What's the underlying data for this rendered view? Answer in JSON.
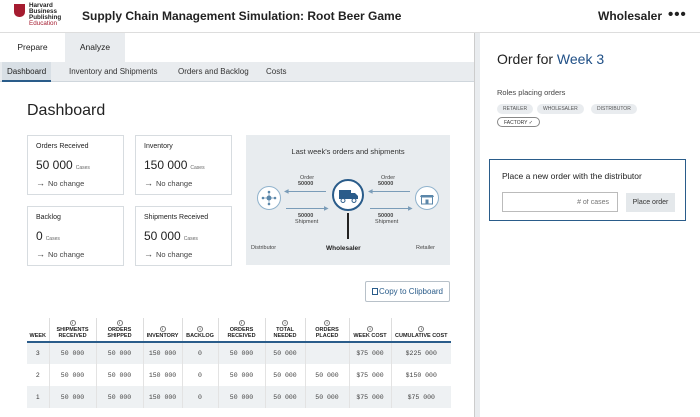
{
  "header": {
    "logo_lines": [
      "Harvard",
      "Business",
      "Publishing",
      "Education"
    ],
    "app_title": "Supply Chain Management Simulation: Root Beer Game",
    "role": "Wholesaler",
    "more_label": "•••"
  },
  "tabs": [
    {
      "label": "Prepare",
      "active": false
    },
    {
      "label": "Analyze",
      "active": true
    }
  ],
  "subtabs": [
    {
      "label": "Dashboard",
      "active": true
    },
    {
      "label": "Inventory and Shipments",
      "active": false
    },
    {
      "label": "Orders and Backlog",
      "active": false
    },
    {
      "label": "Costs",
      "active": false
    }
  ],
  "dashboard": {
    "title": "Dashboard",
    "cards": [
      {
        "title": "Orders Received",
        "value": "50 000",
        "unit": "Cases",
        "change": "No change"
      },
      {
        "title": "Inventory",
        "value": "150 000",
        "unit": "Cases",
        "change": "No change"
      },
      {
        "title": "Backlog",
        "value": "0",
        "unit": "Cases",
        "change": "No change"
      },
      {
        "title": "Shipments Received",
        "value": "50 000",
        "unit": "Cases",
        "change": "No change"
      }
    ],
    "flow": {
      "title": "Last week's orders and shipments",
      "left_order_label": "Order",
      "left_order_value": "50000",
      "right_order_label": "Order",
      "right_order_value": "50000",
      "left_ship_value": "50000",
      "left_ship_label": "Shipment",
      "right_ship_value": "50000",
      "right_ship_label": "Shipment",
      "left_node": "Distributor",
      "center_node": "Wholesaler",
      "right_node": "Retailer"
    },
    "copy_button": "Copy to Clipboard",
    "table": {
      "headers": [
        "WEEK",
        "SHIPMENTS RECEIVED",
        "ORDERS SHIPPED",
        "INVENTORY",
        "BACKLOG",
        "ORDERS RECEIVED",
        "TOTAL NEEDED",
        "ORDERS PLACED",
        "WEEK COST",
        "CUMULATIVE COST"
      ],
      "info_icon": "i",
      "rows": [
        [
          "3",
          "50 000",
          "50 000",
          "150 000",
          "0",
          "50 000",
          "50 000",
          "",
          "$75 000",
          "$225 000"
        ],
        [
          "2",
          "50 000",
          "50 000",
          "150 000",
          "0",
          "50 000",
          "50 000",
          "50 000",
          "$75 000",
          "$150 000"
        ],
        [
          "1",
          "50 000",
          "50 000",
          "150 000",
          "0",
          "50 000",
          "50 000",
          "50 000",
          "$75 000",
          "$75 000"
        ]
      ]
    }
  },
  "order_panel": {
    "title_prefix": "Order for",
    "week_label": "Week 3",
    "roles_label": "Roles placing orders",
    "roles": [
      "RETAILER",
      "WHOLESALER",
      "DISTRIBUTOR"
    ],
    "selected_role": "FACTORY ✓",
    "order_box_title": "Place a new order with the distributor",
    "input_placeholder": "# of cases",
    "place_button": "Place order"
  },
  "colors": {
    "accent": "#1f4f86",
    "brand_red": "#a51c30",
    "panel_bg": "#e9ecef"
  }
}
